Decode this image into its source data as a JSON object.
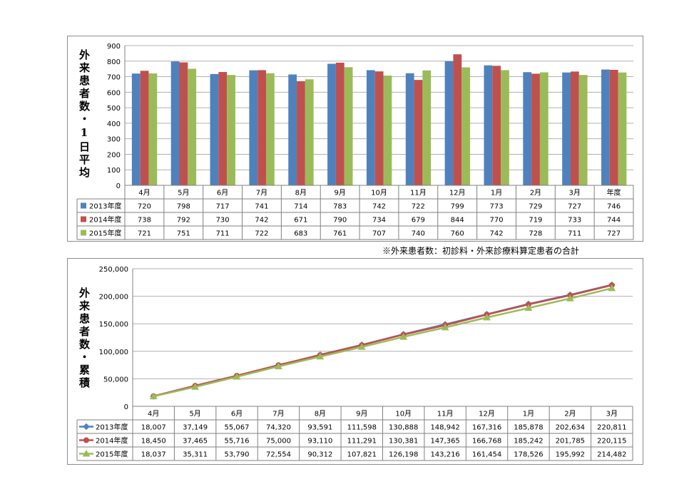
{
  "note": "※外来患者数：初診料・外来診療料算定患者の合計",
  "colors": {
    "s2013": "#4f81bd",
    "s2014": "#c0504d",
    "s2015": "#9bbb59"
  },
  "chart_data": [
    {
      "type": "bar",
      "ylabel": "外来患者数・1日平均",
      "ylim": [
        0,
        900
      ],
      "yticks": [
        "0",
        "100",
        "200",
        "300",
        "400",
        "500",
        "600",
        "700",
        "800",
        "900"
      ],
      "categories": [
        "4月",
        "5月",
        "6月",
        "7月",
        "8月",
        "9月",
        "10月",
        "11月",
        "12月",
        "1月",
        "2月",
        "3月",
        "年度"
      ],
      "grid": true,
      "series": [
        {
          "name": "2013年度",
          "values": [
            720,
            798,
            717,
            741,
            714,
            783,
            742,
            722,
            799,
            773,
            729,
            727,
            746
          ],
          "labels": [
            "720",
            "798",
            "717",
            "741",
            "714",
            "783",
            "742",
            "722",
            "799",
            "773",
            "729",
            "727",
            "746"
          ]
        },
        {
          "name": "2014年度",
          "values": [
            738,
            792,
            730,
            742,
            671,
            790,
            734,
            679,
            844,
            770,
            719,
            733,
            744
          ],
          "labels": [
            "738",
            "792",
            "730",
            "742",
            "671",
            "790",
            "734",
            "679",
            "844",
            "770",
            "719",
            "733",
            "744"
          ]
        },
        {
          "name": "2015年度",
          "values": [
            721,
            751,
            711,
            722,
            683,
            761,
            707,
            740,
            760,
            742,
            728,
            711,
            727
          ],
          "labels": [
            "721",
            "751",
            "711",
            "722",
            "683",
            "761",
            "707",
            "740",
            "760",
            "742",
            "728",
            "711",
            "727"
          ]
        }
      ]
    },
    {
      "type": "line",
      "ylabel": "外来患者数・累積",
      "ylim": [
        0,
        250000
      ],
      "yticks": [
        "0",
        "50,000",
        "100,000",
        "150,000",
        "200,000",
        "250,000"
      ],
      "categories": [
        "4月",
        "5月",
        "6月",
        "7月",
        "8月",
        "9月",
        "10月",
        "11月",
        "12月",
        "1月",
        "2月",
        "3月"
      ],
      "grid": true,
      "series": [
        {
          "name": "2013年度",
          "marker": "diamond",
          "values": [
            18007,
            37149,
            55067,
            74320,
            93591,
            111598,
            130888,
            148942,
            167316,
            185878,
            202634,
            220811
          ],
          "labels": [
            "18,007",
            "37,149",
            "55,067",
            "74,320",
            "93,591",
            "111,598",
            "130,888",
            "148,942",
            "167,316",
            "185,878",
            "202,634",
            "220,811"
          ]
        },
        {
          "name": "2014年度",
          "marker": "circle",
          "values": [
            18450,
            37465,
            55716,
            75000,
            93110,
            111291,
            130381,
            147365,
            166768,
            185242,
            201785,
            220115
          ],
          "labels": [
            "18,450",
            "37,465",
            "55,716",
            "75,000",
            "93,110",
            "111,291",
            "130,381",
            "147,365",
            "166,768",
            "185,242",
            "201,785",
            "220,115"
          ]
        },
        {
          "name": "2015年度",
          "marker": "triangle",
          "values": [
            18037,
            35311,
            53790,
            72554,
            90312,
            107821,
            126198,
            143216,
            161454,
            178526,
            195992,
            214482
          ],
          "labels": [
            "18,037",
            "35,311",
            "53,790",
            "72,554",
            "90,312",
            "107,821",
            "126,198",
            "143,216",
            "161,454",
            "178,526",
            "195,992",
            "214,482"
          ]
        }
      ]
    }
  ]
}
